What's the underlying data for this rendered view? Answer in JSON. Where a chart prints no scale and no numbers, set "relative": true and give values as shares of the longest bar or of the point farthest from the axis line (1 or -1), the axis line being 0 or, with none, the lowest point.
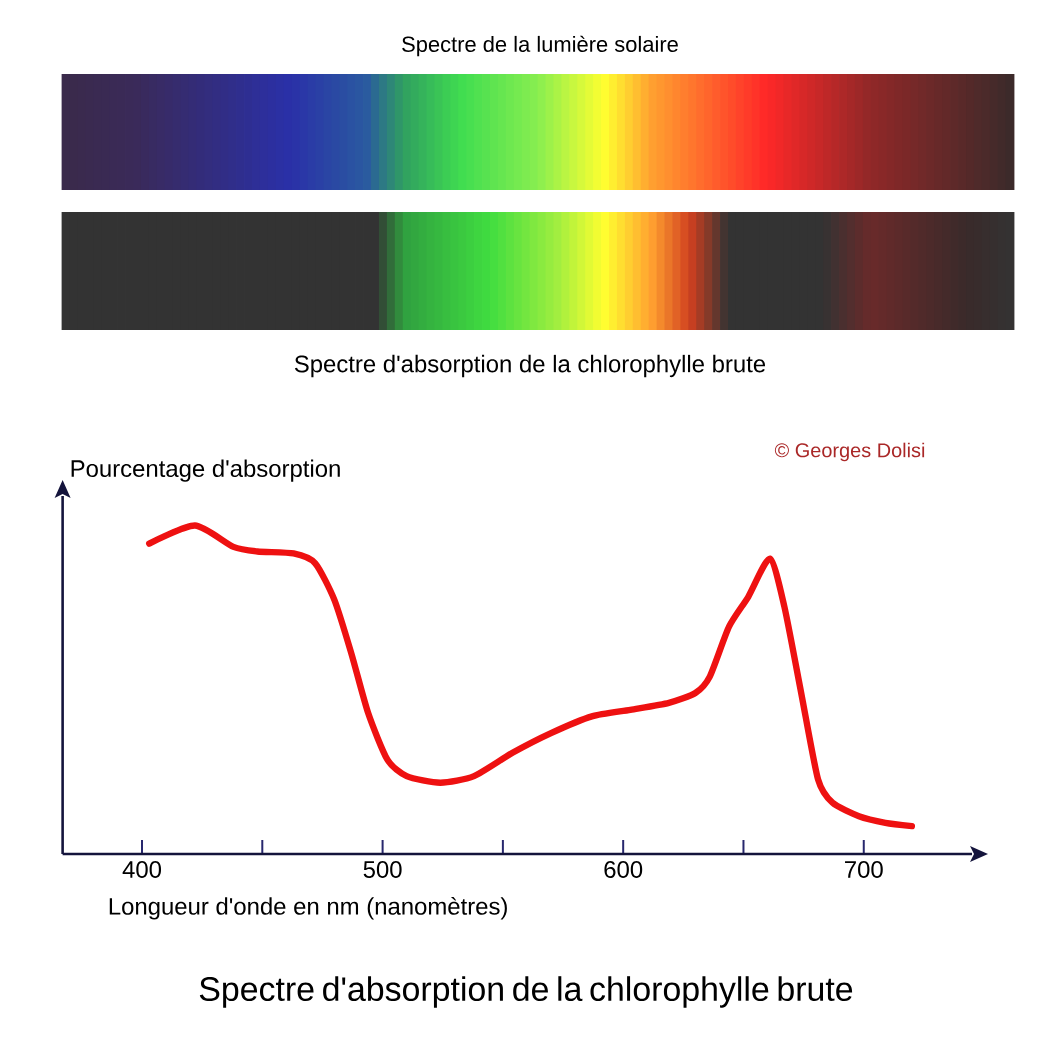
{
  "chart_data": {
    "type": "line",
    "relative": true,
    "title": "Spectre d'absorption de la chlorophylle brute",
    "xlabel": "Longueur d'onde en nm (nanomètres)",
    "ylabel": "Pourcentage d'absorption",
    "annotations": [
      "Spectre de la lumière solaire",
      "Spectre d'absorption de la chlorophylle brute",
      "© Georges Dolisi"
    ],
    "xlim": [
      367,
      745
    ],
    "xticks": [
      400,
      {
        "value": 450,
        "label": null
      },
      500,
      {
        "value": 550,
        "label": null
      },
      600,
      {
        "value": 650,
        "label": null
      },
      700
    ],
    "x": [
      403,
      422,
      438,
      448,
      463,
      472,
      480,
      487,
      494,
      502,
      510,
      524,
      538,
      554,
      570,
      587,
      603,
      619,
      630,
      636,
      644,
      652,
      661,
      667,
      674,
      681,
      687,
      698,
      709,
      720
    ],
    "series": [
      {
        "color": "#ee1111",
        "values": [
          0.945,
          1.0,
          0.935,
          0.921,
          0.915,
          0.885,
          0.773,
          0.611,
          0.429,
          0.287,
          0.237,
          0.217,
          0.237,
          0.308,
          0.368,
          0.419,
          0.439,
          0.46,
          0.49,
          0.54,
          0.692,
          0.783,
          0.899,
          0.753,
          0.49,
          0.227,
          0.156,
          0.115,
          0.095,
          0.085
        ]
      }
    ],
    "grid": false,
    "marker": "none",
    "line_style": "solid"
  }
}
